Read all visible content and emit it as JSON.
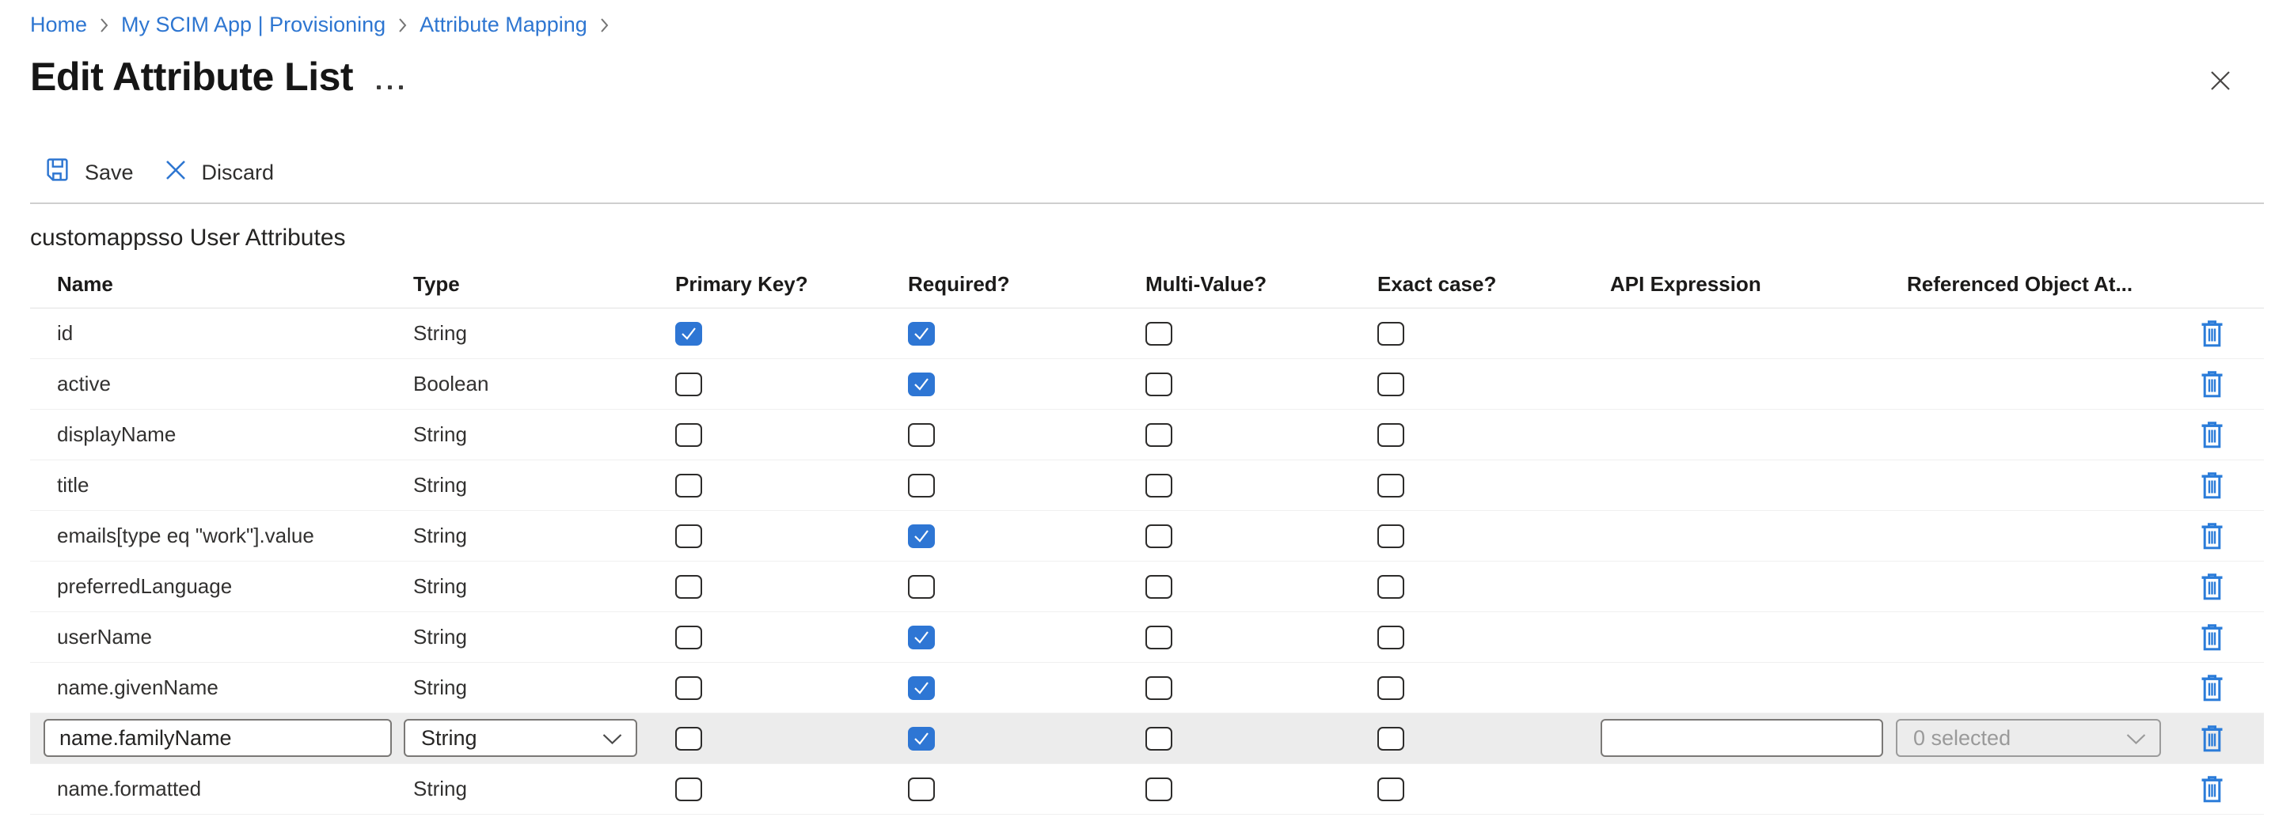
{
  "breadcrumb": {
    "items": [
      {
        "label": "Home"
      },
      {
        "label": "My SCIM App | Provisioning"
      },
      {
        "label": "Attribute Mapping"
      }
    ]
  },
  "page": {
    "title": "Edit Attribute List"
  },
  "toolbar": {
    "save_label": "Save",
    "discard_label": "Discard"
  },
  "section": {
    "heading": "customappsso User Attributes"
  },
  "icons": {
    "save": "floppy-disk-icon",
    "discard": "x-icon",
    "close": "close-icon",
    "more": "more-options-ellipsis-icon",
    "delete": "trash-icon",
    "chevron": "chevron-down-icon"
  },
  "colors": {
    "link_blue": "#2e76d1",
    "checkbox_checked_blue": "#2e76d4",
    "trash_blue": "#2b7cd9",
    "edit_row_bg": "#ececec",
    "row_divider": "#f0f0f0",
    "disabled_text": "#9a9a9a"
  },
  "table": {
    "columns": [
      "Name",
      "Type",
      "Primary Key?",
      "Required?",
      "Multi-Value?",
      "Exact case?",
      "API Expression",
      "Referenced Object At..."
    ],
    "rows": [
      {
        "name": "id",
        "type": "String",
        "primary": true,
        "required": true,
        "multi": false,
        "exact": false,
        "editing": false
      },
      {
        "name": "active",
        "type": "Boolean",
        "primary": false,
        "required": true,
        "multi": false,
        "exact": false,
        "editing": false
      },
      {
        "name": "displayName",
        "type": "String",
        "primary": false,
        "required": false,
        "multi": false,
        "exact": false,
        "editing": false
      },
      {
        "name": "title",
        "type": "String",
        "primary": false,
        "required": false,
        "multi": false,
        "exact": false,
        "editing": false
      },
      {
        "name": "emails[type eq \"work\"].value",
        "type": "String",
        "primary": false,
        "required": true,
        "multi": false,
        "exact": false,
        "editing": false
      },
      {
        "name": "preferredLanguage",
        "type": "String",
        "primary": false,
        "required": false,
        "multi": false,
        "exact": false,
        "editing": false
      },
      {
        "name": "userName",
        "type": "String",
        "primary": false,
        "required": true,
        "multi": false,
        "exact": false,
        "editing": false
      },
      {
        "name": "name.givenName",
        "type": "String",
        "primary": false,
        "required": true,
        "multi": false,
        "exact": false,
        "editing": false
      },
      {
        "name": "name.familyName",
        "type": "String",
        "primary": false,
        "required": true,
        "multi": false,
        "exact": false,
        "editing": true,
        "api_expression_value": "",
        "multiselect_label": "0 selected"
      },
      {
        "name": "name.formatted",
        "type": "String",
        "primary": false,
        "required": false,
        "multi": false,
        "exact": false,
        "editing": false
      }
    ]
  }
}
